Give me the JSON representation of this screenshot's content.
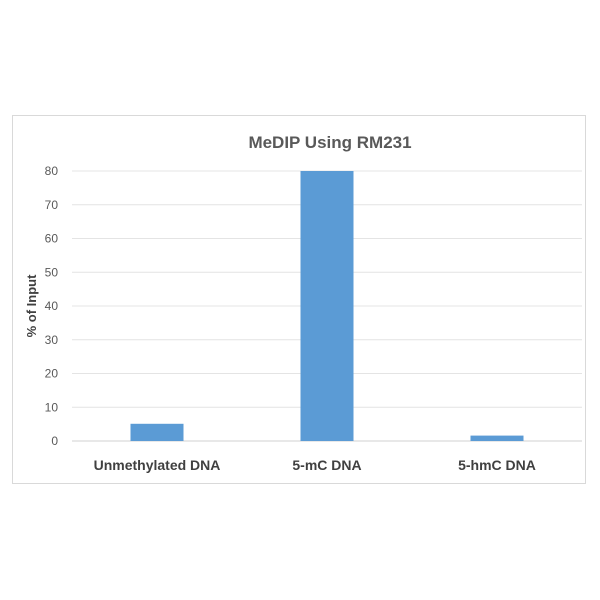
{
  "chart_data": {
    "type": "bar",
    "title": "MeDIP Using RM231",
    "xlabel": "",
    "ylabel": "% of Input",
    "categories": [
      "Unmethylated DNA",
      "5-mC DNA",
      "5-hmC DNA"
    ],
    "values": [
      5.1,
      80,
      1.6
    ],
    "ylim": [
      0,
      80
    ],
    "yticks": [
      0,
      10,
      20,
      30,
      40,
      50,
      60,
      70,
      80
    ],
    "grid": true,
    "bar_color": "#5b9bd5"
  }
}
